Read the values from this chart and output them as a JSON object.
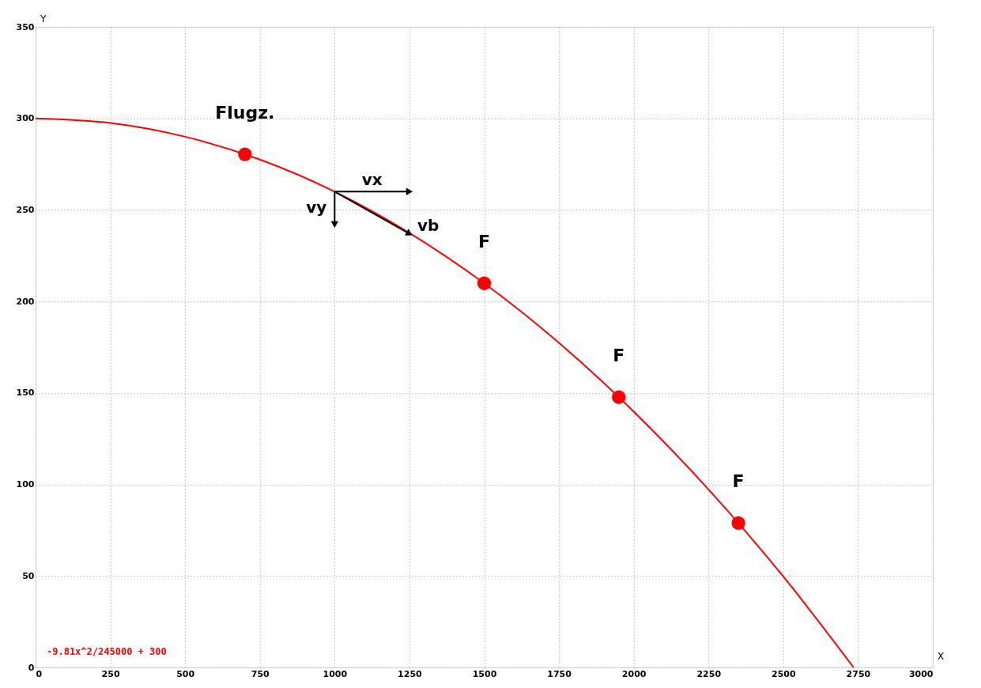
{
  "chart_data": {
    "type": "line",
    "xlabel": "X",
    "ylabel": "Y",
    "xlim": [
      0,
      3000
    ],
    "ylim": [
      0,
      350
    ],
    "xticks": [
      0,
      250,
      500,
      750,
      1000,
      1250,
      1500,
      1750,
      2000,
      2250,
      2500,
      2750,
      3000
    ],
    "yticks": [
      0,
      50,
      100,
      150,
      200,
      250,
      300,
      350
    ],
    "grid": true,
    "series": [
      {
        "color": "#ff0000",
        "line_style": "solid",
        "marker": "none",
        "x": [
          0,
          250,
          500,
          750,
          1000,
          1250,
          1500,
          1750,
          2000,
          2250,
          2500,
          2735
        ],
        "values": [
          300,
          297.5,
          290,
          277.5,
          260,
          237.4,
          209.9,
          177.4,
          139.8,
          97.3,
          49.7,
          0
        ]
      },
      {
        "type": "scatter",
        "color": "#ff0000",
        "marker": "circle",
        "x": [
          700,
          1500,
          1950,
          2350
        ],
        "values": [
          280.4,
          209.9,
          147.7,
          78.9
        ]
      }
    ],
    "annotations": [
      {
        "text": "Flugz.",
        "x": 700,
        "y": 280.4
      },
      {
        "text": "F",
        "x": 1500,
        "y": 209.9
      },
      {
        "text": "F",
        "x": 1950,
        "y": 147.7
      },
      {
        "text": "F",
        "x": 2350,
        "y": 78.9
      },
      {
        "text": "vx",
        "x": 1250,
        "y": 260
      },
      {
        "text": "vy",
        "x": 1000,
        "y": 242
      },
      {
        "text": "vb",
        "x": 1250,
        "y": 237
      },
      "-9.81x^2/245000 + 300"
    ]
  }
}
